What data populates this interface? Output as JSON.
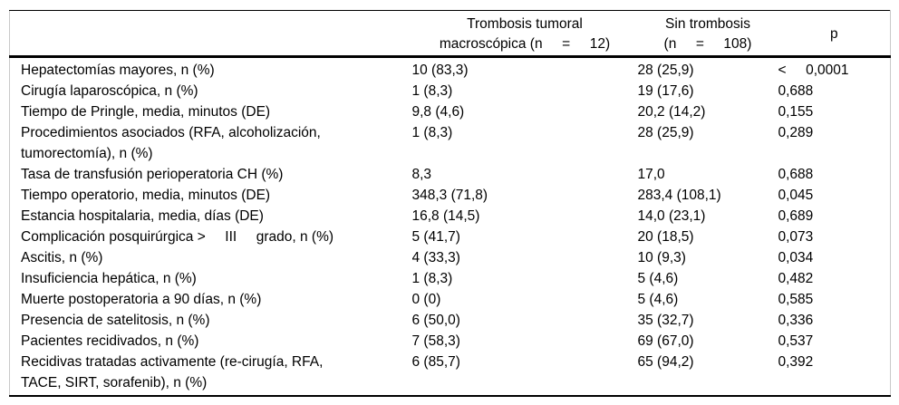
{
  "colors": {
    "text": "#000000",
    "rule": "#000000",
    "frame": "#c9c9c9",
    "background": "#ffffff"
  },
  "table": {
    "columns": [
      {
        "label": ""
      },
      {
        "label": "Trombosis tumoral\nmacroscópica (n     =     12)"
      },
      {
        "label": "Sin trombosis\n(n     =     108)"
      },
      {
        "label": "p"
      }
    ],
    "rows": [
      {
        "label": "Hepatectomías mayores, n (%)",
        "thrombosis": "10 (83,3)",
        "no_thrombosis": "28 (25,9)",
        "p": "<     0,0001"
      },
      {
        "label": "Cirugía laparoscópica, n (%)",
        "thrombosis": "1 (8,3)",
        "no_thrombosis": "19 (17,6)",
        "p": "0,688"
      },
      {
        "label": "Tiempo de Pringle, media, minutos (DE)",
        "thrombosis": "9,8 (4,6)",
        "no_thrombosis": "20,2 (14,2)",
        "p": "0,155"
      },
      {
        "label": "Procedimientos asociados (RFA, alcoholización,\ntumorectomía), n (%)",
        "thrombosis": "1 (8,3)",
        "no_thrombosis": "28 (25,9)",
        "p": "0,289"
      },
      {
        "label": "Tasa de transfusión perioperatoria CH (%)",
        "thrombosis": "8,3",
        "no_thrombosis": "17,0",
        "p": "0,688"
      },
      {
        "label": "Tiempo operatorio, media, minutos (DE)",
        "thrombosis": "348,3 (71,8)",
        "no_thrombosis": "283,4 (108,1)",
        "p": "0,045"
      },
      {
        "label": "Estancia hospitalaria, media, días (DE)",
        "thrombosis": "16,8 (14,5)",
        "no_thrombosis": "14,0 (23,1)",
        "p": "0,689"
      },
      {
        "label": "Complicación posquirúrgica >     III     grado, n (%)",
        "thrombosis": "5 (41,7)",
        "no_thrombosis": "20 (18,5)",
        "p": "0,073"
      },
      {
        "label": "Ascitis, n (%)",
        "thrombosis": "4 (33,3)",
        "no_thrombosis": "10 (9,3)",
        "p": "0,034"
      },
      {
        "label": "Insuficiencia hepática, n (%)",
        "thrombosis": "1 (8,3)",
        "no_thrombosis": "5 (4,6)",
        "p": "0,482"
      },
      {
        "label": "Muerte postoperatoria a 90 días, n (%)",
        "thrombosis": "0 (0)",
        "no_thrombosis": "5 (4,6)",
        "p": "0,585"
      },
      {
        "label": "Presencia de satelitosis, n (%)",
        "thrombosis": "6 (50,0)",
        "no_thrombosis": "35 (32,7)",
        "p": "0,336"
      },
      {
        "label": "Pacientes recidivados, n (%)",
        "thrombosis": "7 (58,3)",
        "no_thrombosis": "69 (67,0)",
        "p": "0,537"
      },
      {
        "label": "Recidivas tratadas activamente (re-cirugía, RFA,\nTACE, SIRT, sorafenib), n (%)",
        "thrombosis": "6 (85,7)",
        "no_thrombosis": "65 (94,2)",
        "p": "0,392"
      }
    ]
  }
}
